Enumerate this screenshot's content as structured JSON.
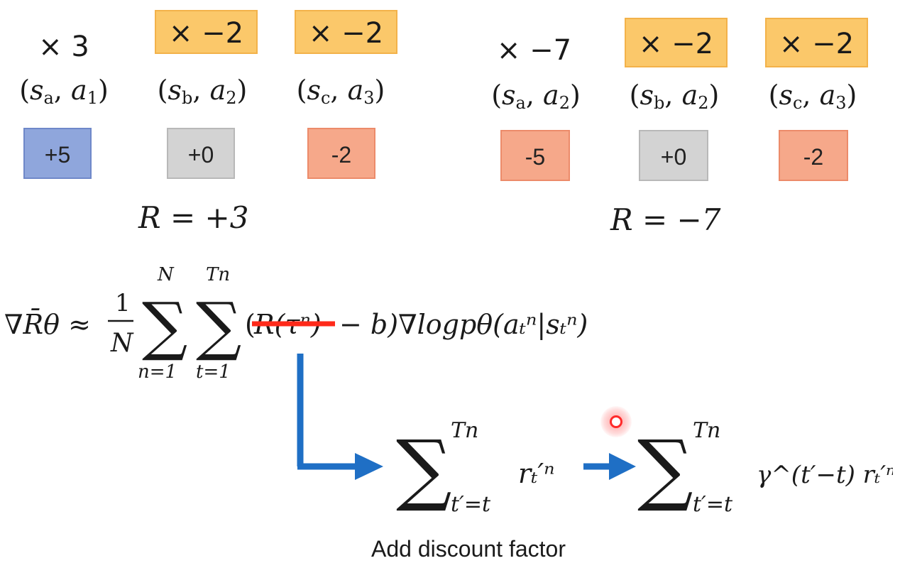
{
  "left_example": {
    "multipliers": [
      "× 3",
      "× −2",
      "× −2"
    ],
    "pairs": [
      {
        "s": "s",
        "s_sub": "a",
        "a": "a",
        "a_sub": "1"
      },
      {
        "s": "s",
        "s_sub": "b",
        "a": "a",
        "a_sub": "2"
      },
      {
        "s": "s",
        "s_sub": "c",
        "a": "a",
        "a_sub": "3"
      }
    ],
    "rewards": [
      "+5",
      "+0",
      "-2"
    ],
    "total": "R = +3"
  },
  "right_example": {
    "multipliers": [
      "× −7",
      "× −2",
      "× −2"
    ],
    "pairs": [
      {
        "s": "s",
        "s_sub": "a",
        "a": "a",
        "a_sub": "2"
      },
      {
        "s": "s",
        "s_sub": "b",
        "a": "a",
        "a_sub": "2"
      },
      {
        "s": "s",
        "s_sub": "c",
        "a": "a",
        "a_sub": "3"
      }
    ],
    "rewards": [
      "-5",
      "+0",
      "-2"
    ],
    "total": "R = −7"
  },
  "formula": {
    "lhs": "∇R̄θ ≈",
    "frac_num": "1",
    "frac_den": "N",
    "sum1_top": "N",
    "sum1_bot": "n=1",
    "sum2_top": "Tn",
    "sum2_bot": "t=1",
    "struck_term": "R(τⁿ)",
    "rest": "− b)∇logpθ(aₜⁿ|sₜⁿ)"
  },
  "expr1": {
    "top": "Tn",
    "bottom": "t′=t",
    "term": "rₜ′ⁿ"
  },
  "expr2": {
    "top": "Tn",
    "bottom": "t′=t",
    "term": "γ^(t′−t) rₜ′ⁿ"
  },
  "caption": "Add discount factor",
  "colors": {
    "highlight": "#fbc86a",
    "positive": "#8fa6dc",
    "zero": "#d3d3d3",
    "negative": "#f6a88a",
    "arrow": "#1f6fc5",
    "strike": "#ff2a1a",
    "pointer": "#ff3b3b"
  }
}
